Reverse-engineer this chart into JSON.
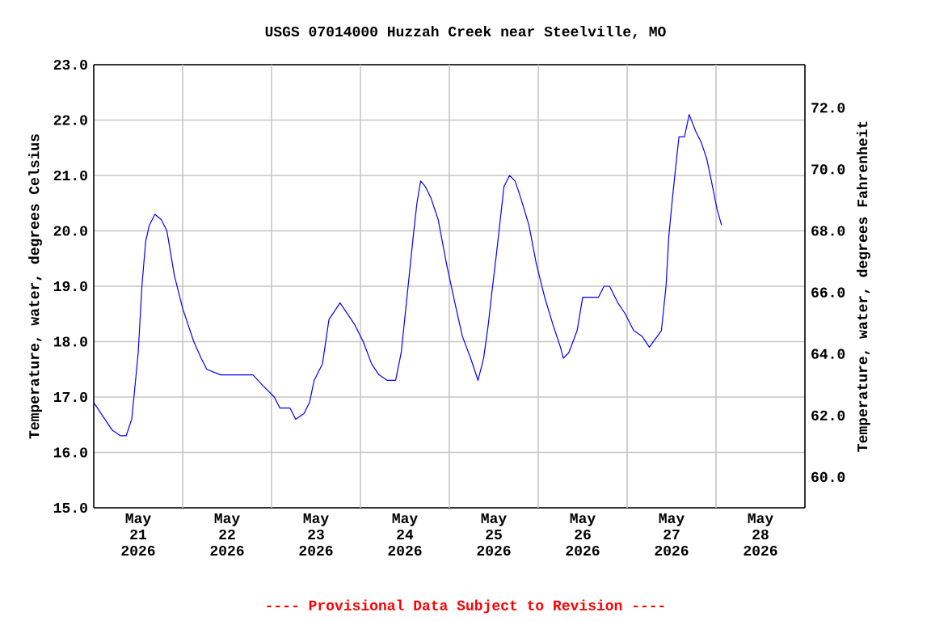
{
  "chart_data": {
    "type": "line",
    "title": "USGS 07014000 Huzzah Creek near Steelville, MO",
    "ylabel": "Temperature, water, degrees Celsius",
    "y2label": "Temperature, water, degrees Fahrenheit",
    "annotations": [
      "---- Provisional Data Subject to Revision ----"
    ],
    "xlim": [
      "2026-05-21T00:00",
      "2026-05-29T00:00"
    ],
    "xticks": [
      {
        "value": "2026-05-21T12:00",
        "label": "May 21 2026"
      },
      {
        "value": "2026-05-22T00:00",
        "label": null
      },
      {
        "value": "2026-05-22T12:00",
        "label": "May 22 2026"
      },
      {
        "value": "2026-05-23T00:00",
        "label": null
      },
      {
        "value": "2026-05-23T12:00",
        "label": "May 23 2026"
      },
      {
        "value": "2026-05-24T00:00",
        "label": null
      },
      {
        "value": "2026-05-24T12:00",
        "label": "May 24 2026"
      },
      {
        "value": "2026-05-25T00:00",
        "label": null
      },
      {
        "value": "2026-05-25T12:00",
        "label": "May 25 2026"
      },
      {
        "value": "2026-05-26T00:00",
        "label": null
      },
      {
        "value": "2026-05-26T12:00",
        "label": "May 26 2026"
      },
      {
        "value": "2026-05-27T00:00",
        "label": null
      },
      {
        "value": "2026-05-27T12:00",
        "label": "May 27 2026"
      },
      {
        "value": "2026-05-28T00:00",
        "label": null
      },
      {
        "value": "2026-05-28T12:00",
        "label": "May 28 2026"
      }
    ],
    "ylim": [
      15,
      23
    ],
    "yticks": [
      {
        "value": 15,
        "label": "15.0"
      },
      {
        "value": 16,
        "label": "16.0"
      },
      {
        "value": 17,
        "label": "17.0"
      },
      {
        "value": 18,
        "label": "18.0"
      },
      {
        "value": 19,
        "label": "19.0"
      },
      {
        "value": 20,
        "label": "20.0"
      },
      {
        "value": 21,
        "label": "21.0"
      },
      {
        "value": 22,
        "label": "22.0"
      },
      {
        "value": 23,
        "label": "23.0"
      }
    ],
    "y2lim": [
      59,
      73.4
    ],
    "y2ticks": [
      {
        "value": 60,
        "label": "60.0"
      },
      {
        "value": 62,
        "label": "62.0"
      },
      {
        "value": 64,
        "label": "64.0"
      },
      {
        "value": 66,
        "label": "66.0"
      },
      {
        "value": 68,
        "label": "68.0"
      },
      {
        "value": 70,
        "label": "70.0"
      },
      {
        "value": 72,
        "label": "72.0"
      }
    ],
    "grid": true,
    "marker": "none",
    "line_style": "solid",
    "series": [
      {
        "color": "#0000ff",
        "x": [
          "2026-05-21T00:00",
          "2026-05-21T03:00",
          "2026-05-21T05:00",
          "2026-05-21T07:15",
          "2026-05-21T08:45",
          "2026-05-21T10:15",
          "2026-05-21T11:00",
          "2026-05-21T12:00",
          "2026-05-21T13:00",
          "2026-05-21T14:00",
          "2026-05-21T15:00",
          "2026-05-21T16:30",
          "2026-05-21T18:15",
          "2026-05-21T19:45",
          "2026-05-21T20:45",
          "2026-05-21T21:45",
          "2026-05-22T00:00",
          "2026-05-22T03:00",
          "2026-05-22T05:00",
          "2026-05-22T06:30",
          "2026-05-22T10:15",
          "2026-05-22T16:00",
          "2026-05-22T19:00",
          "2026-05-22T21:45",
          "2026-05-23T00:45",
          "2026-05-23T02:15",
          "2026-05-23T05:00",
          "2026-05-23T06:30",
          "2026-05-23T08:45",
          "2026-05-23T10:15",
          "2026-05-23T11:30",
          "2026-05-23T13:45",
          "2026-05-23T15:30",
          "2026-05-23T17:30",
          "2026-05-23T18:30",
          "2026-05-23T19:30",
          "2026-05-23T22:30",
          "2026-05-24T00:45",
          "2026-05-24T03:00",
          "2026-05-24T05:00",
          "2026-05-24T07:15",
          "2026-05-24T09:30",
          "2026-05-24T11:00",
          "2026-05-24T12:15",
          "2026-05-24T14:15",
          "2026-05-24T15:15",
          "2026-05-24T16:15",
          "2026-05-24T17:30",
          "2026-05-24T19:00",
          "2026-05-24T21:00",
          "2026-05-24T23:15",
          "2026-05-25T01:30",
          "2026-05-25T03:30",
          "2026-05-25T05:45",
          "2026-05-25T07:45",
          "2026-05-25T09:15",
          "2026-05-25T10:30",
          "2026-05-25T11:30",
          "2026-05-25T12:45",
          "2026-05-25T13:45",
          "2026-05-25T14:45",
          "2026-05-25T16:15",
          "2026-05-25T17:45",
          "2026-05-25T19:15",
          "2026-05-25T21:30",
          "2026-05-25T23:30",
          "2026-05-26T01:45",
          "2026-05-26T04:00",
          "2026-05-26T06:00",
          "2026-05-26T06:45",
          "2026-05-26T08:15",
          "2026-05-26T10:30",
          "2026-05-26T12:00",
          "2026-05-26T16:15",
          "2026-05-26T17:45",
          "2026-05-26T19:15",
          "2026-05-26T21:30",
          "2026-05-26T23:30",
          "2026-05-27T01:45",
          "2026-05-27T04:00",
          "2026-05-27T06:00",
          "2026-05-27T09:15",
          "2026-05-27T10:30",
          "2026-05-27T11:15",
          "2026-05-27T12:15",
          "2026-05-27T13:30",
          "2026-05-27T14:00",
          "2026-05-27T15:30",
          "2026-05-27T16:45",
          "2026-05-27T18:30",
          "2026-05-27T20:00",
          "2026-05-27T21:30",
          "2026-05-27T22:45",
          "2026-05-28T00:15",
          "2026-05-28T01:30"
        ],
        "values": [
          16.9,
          16.6,
          16.4,
          16.3,
          16.3,
          16.6,
          17.1,
          17.8,
          19.0,
          19.8,
          20.1,
          20.3,
          20.2,
          20.0,
          19.6,
          19.2,
          18.6,
          18.0,
          17.7,
          17.5,
          17.4,
          17.4,
          17.4,
          17.2,
          17.0,
          16.8,
          16.8,
          16.6,
          16.7,
          16.9,
          17.3,
          17.6,
          18.4,
          18.6,
          18.7,
          18.6,
          18.3,
          18.0,
          17.6,
          17.4,
          17.3,
          17.3,
          17.8,
          18.6,
          19.9,
          20.5,
          20.9,
          20.8,
          20.6,
          20.2,
          19.4,
          18.7,
          18.1,
          17.7,
          17.3,
          17.7,
          18.3,
          18.9,
          19.6,
          20.2,
          20.8,
          21.0,
          20.9,
          20.6,
          20.1,
          19.4,
          18.8,
          18.3,
          17.9,
          17.7,
          17.8,
          18.2,
          18.8,
          18.8,
          19.0,
          19.0,
          18.7,
          18.5,
          18.2,
          18.1,
          17.9,
          18.2,
          19.0,
          19.9,
          20.6,
          21.4,
          21.7,
          21.7,
          22.1,
          21.8,
          21.6,
          21.3,
          20.9,
          20.4,
          20.1
        ]
      }
    ]
  }
}
